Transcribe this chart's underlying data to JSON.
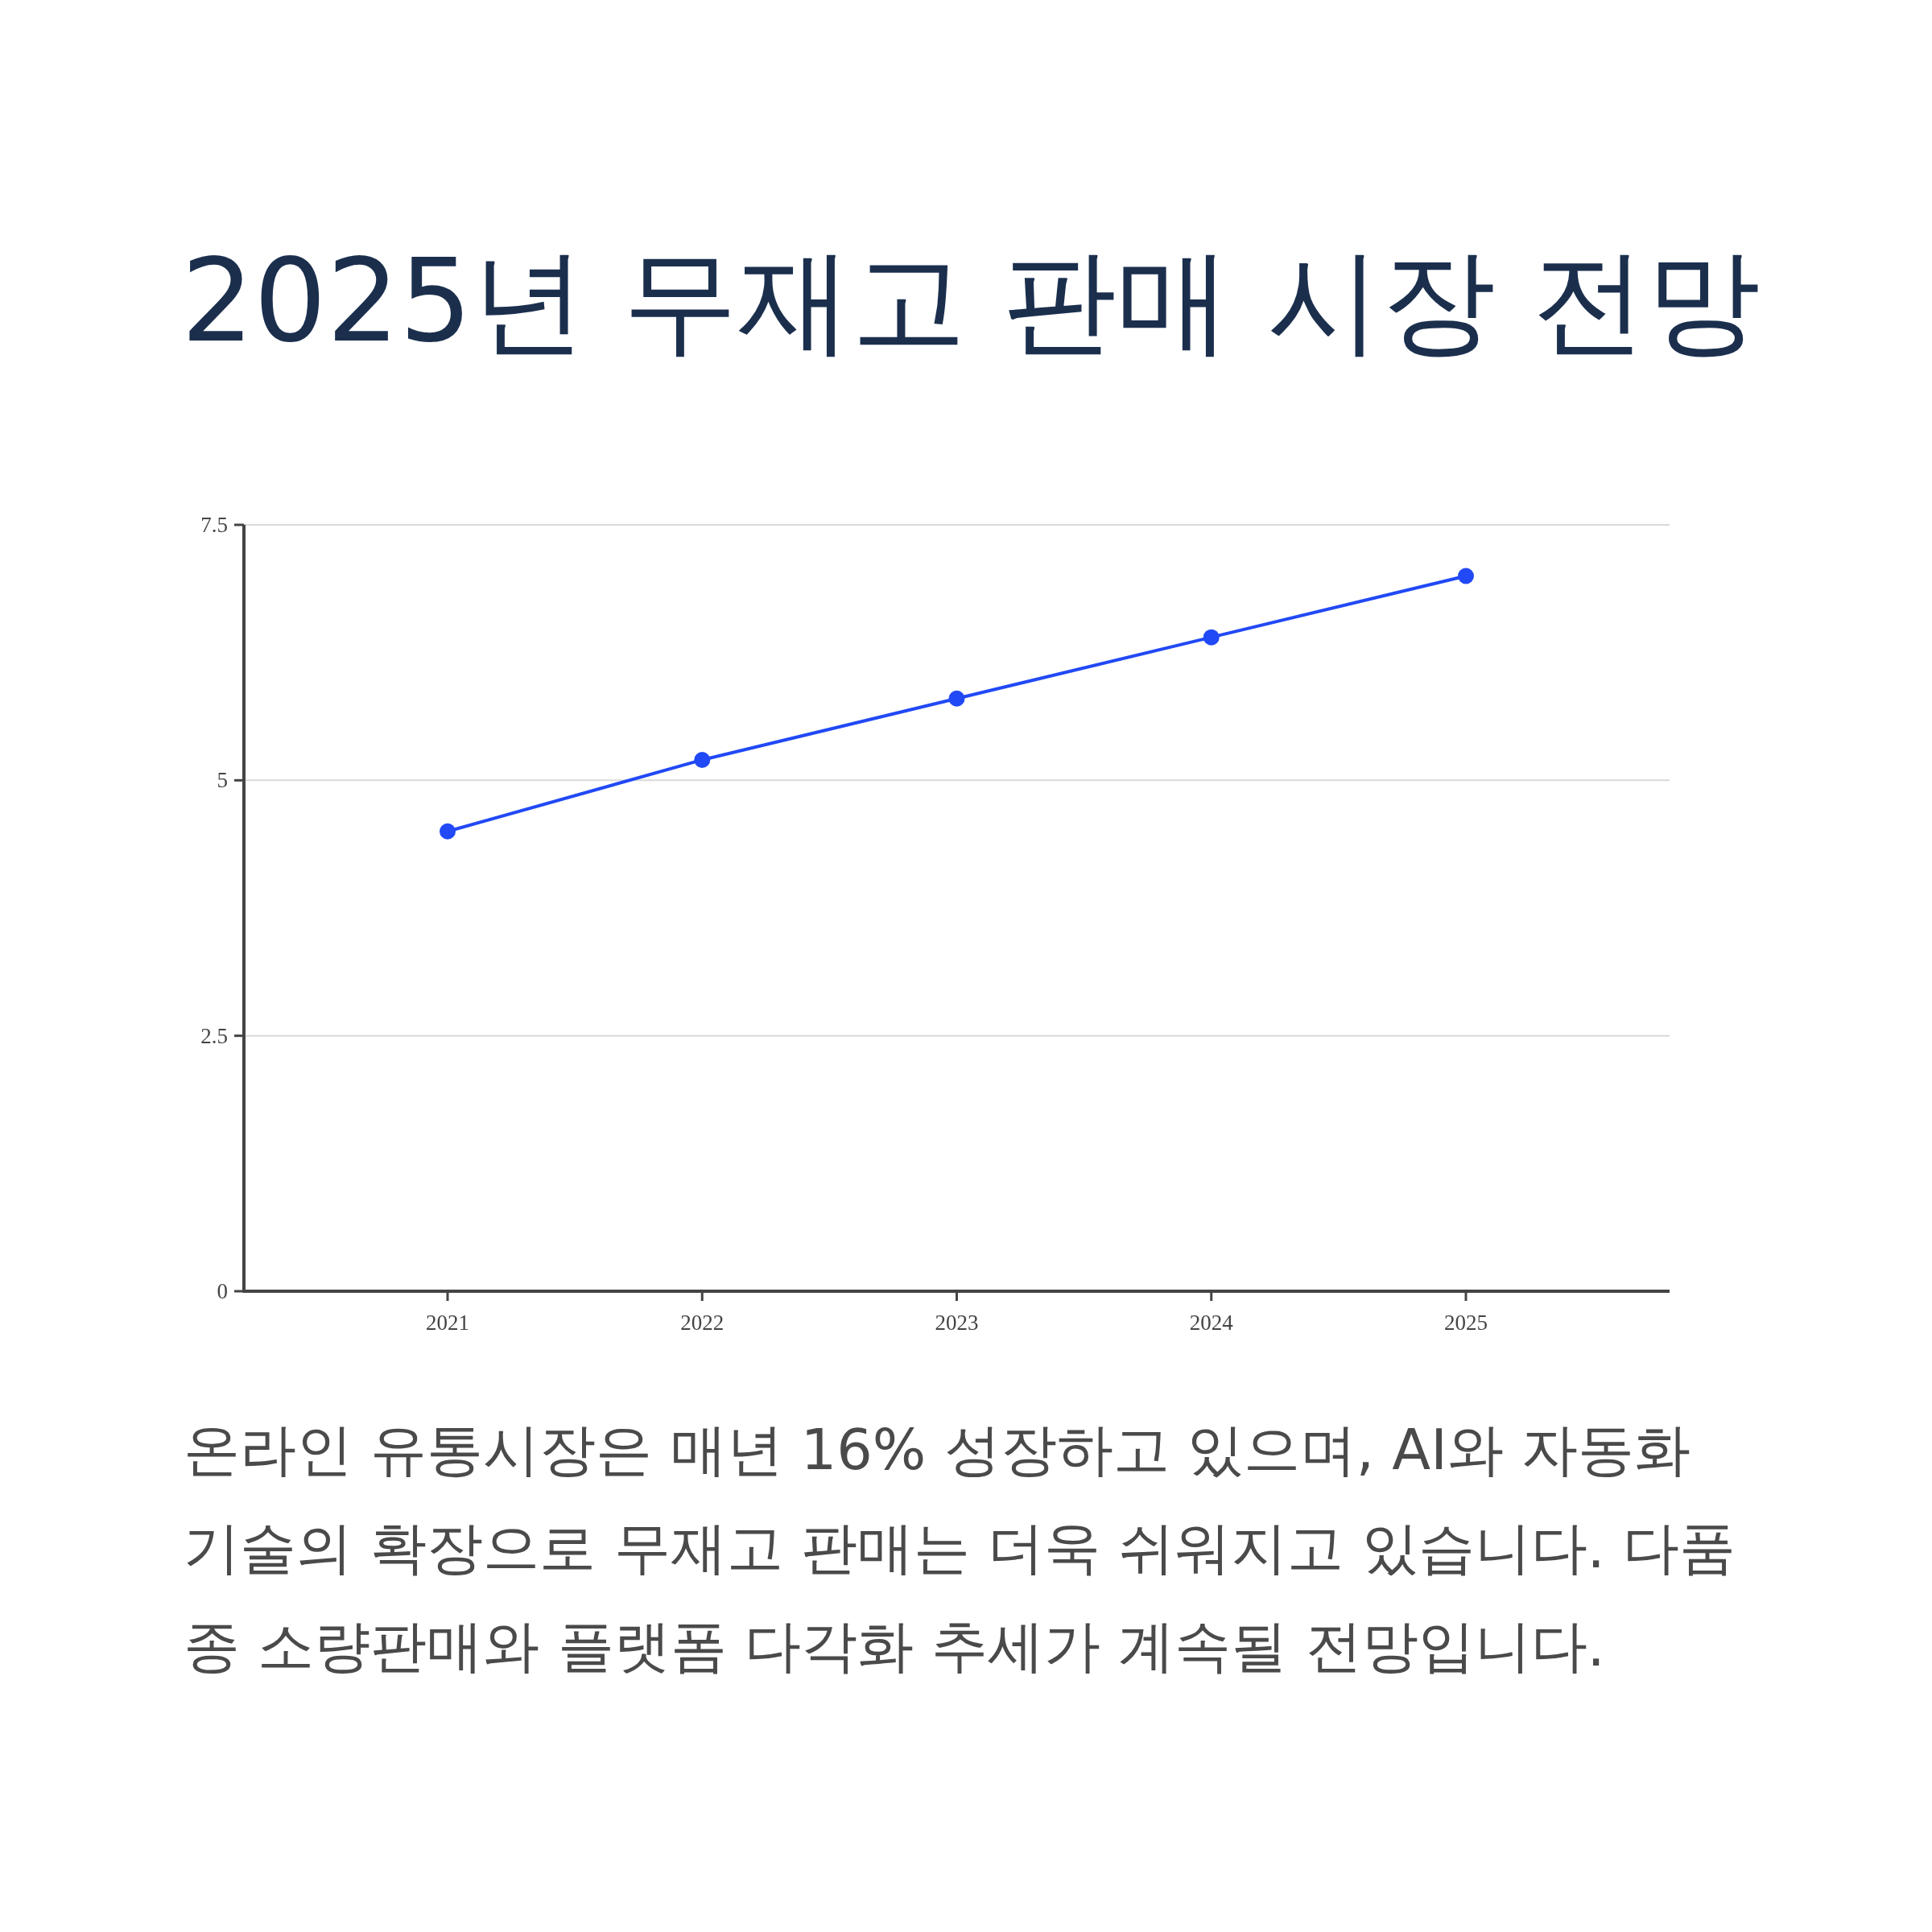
{
  "chart_data": {
    "type": "line",
    "title": "2025년 무재고 판매 시장 전망",
    "x": [
      2021,
      2022,
      2023,
      2024,
      2025
    ],
    "series": [
      {
        "color": "#2149f5",
        "values": [
          4.5,
          5.2,
          5.8,
          6.4,
          7.0
        ]
      }
    ],
    "xlim": [
      2020.2,
      2025.8
    ],
    "xticks": [
      2021,
      2022,
      2023,
      2024,
      2025
    ],
    "ylim": [
      0,
      7.5
    ],
    "yticks": [
      0,
      2.5,
      5,
      7.5
    ],
    "grid": "y",
    "marker": "circle",
    "line_style": "solid",
    "annotations": [
      "온라인 유통시장은 매년 16% 성장하고 있으며, AI와 자동화 기술의 확장으로 무재고 판매는 더욱 쉬워지고 있습니다. 다품종 소량판매와 플랫폼 다각화 추세가 계속될 전망입니다."
    ]
  }
}
